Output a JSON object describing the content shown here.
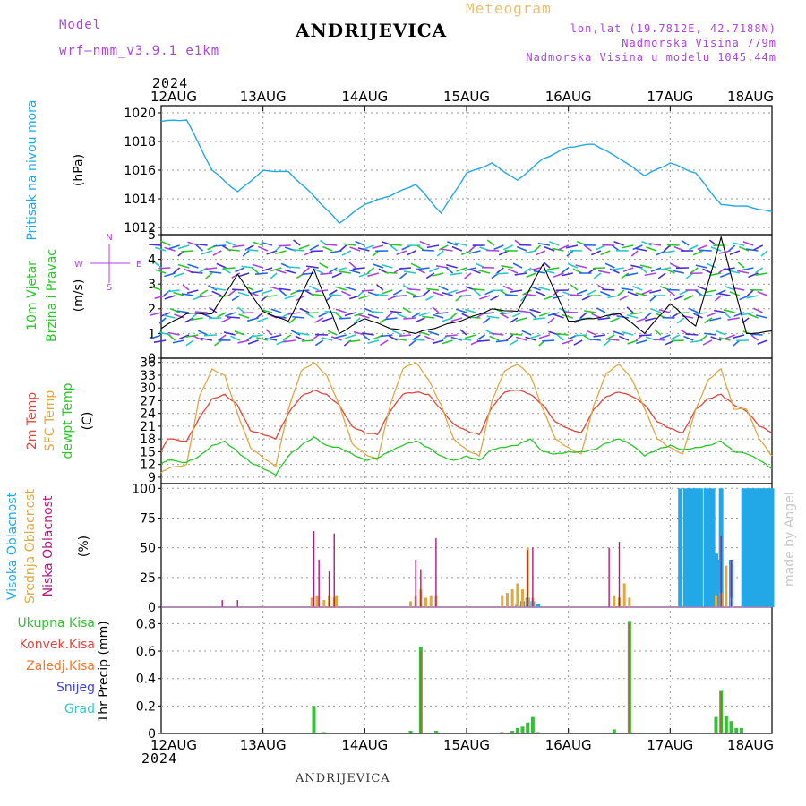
{
  "header": {
    "model_label": "Model",
    "model_name": "wrf—nmm_v3.9.1  e1km",
    "station": "ANDRIJEVICA",
    "meteogram_label": "Meteogram",
    "lonlat": "lon,lat (19.7812E, 42.7188N)",
    "elevation": "Nadmorska Visina 779m",
    "model_elevation": "Nadmorska Visina u modelu 1045.44m",
    "watermark": "made by Angel",
    "footer_station": "ANDRIJEVICA",
    "year_top": "2024",
    "year_bottom": "2024"
  },
  "colors": {
    "pressure": "#22a8e6",
    "temp2m": "#e2453c",
    "sfc_temp": "#e0a840",
    "dewpt": "#28c828",
    "high_cloud": "#22a8e6",
    "mid_cloud": "#e0a840",
    "low_cloud": "#b4197f",
    "total_precip": "#34c034",
    "convective": "#e2453c",
    "freezing": "#f07a30",
    "snow": "#4040e0",
    "grad": "#30c8c8",
    "model_header": "#aa44dd",
    "meteogram": "#e8c070"
  },
  "chart_data": [
    {
      "type": "line",
      "panel": "pressure",
      "ylabel": [
        "Pritisak na nivou mora",
        "(hPa)"
      ],
      "x_ticks": [
        "12AUG",
        "13AUG",
        "14AUG",
        "15AUG",
        "16AUG",
        "17AUG",
        "18AUG"
      ],
      "ylim": [
        1011.5,
        1020.5
      ],
      "yticks": [
        1012,
        1014,
        1016,
        1018,
        1020
      ],
      "grid": true,
      "x": [
        0,
        0.25,
        0.5,
        0.75,
        1,
        1.25,
        1.5,
        1.75,
        2,
        2.25,
        2.5,
        2.75,
        3,
        3.25,
        3.5,
        3.75,
        4,
        4.25,
        4.5,
        4.75,
        5,
        5.25,
        5.5,
        5.75,
        6
      ],
      "series": [
        {
          "name": "Pritisak na nivou mora",
          "values": [
            1019.4,
            1019.5,
            1016.0,
            1014.5,
            1016.0,
            1015.9,
            1014.2,
            1012.3,
            1013.6,
            1014.2,
            1015.0,
            1013.0,
            1015.8,
            1016.5,
            1015.3,
            1016.8,
            1017.6,
            1017.8,
            1016.8,
            1015.6,
            1016.5,
            1015.8,
            1013.6,
            1013.5,
            1013.1
          ]
        }
      ]
    },
    {
      "type": "line",
      "panel": "wind",
      "ylabel": [
        "10m Vjetar",
        "Brzina i Pravac",
        "(m/s)"
      ],
      "compass": [
        "N",
        "S",
        "W",
        "E"
      ],
      "ylim": [
        0,
        5
      ],
      "yticks": [
        0,
        1,
        2,
        3,
        4,
        5
      ],
      "grid": true,
      "x": [
        0,
        0.25,
        0.5,
        0.75,
        1,
        1.25,
        1.5,
        1.75,
        2,
        2.25,
        2.5,
        2.75,
        3,
        3.25,
        3.5,
        3.75,
        4,
        4.25,
        4.5,
        4.75,
        5,
        5.25,
        5.5,
        5.75,
        6
      ],
      "series": [
        {
          "name": "10m Vjetar",
          "values": [
            1.2,
            1.8,
            1.8,
            3.4,
            1.9,
            1.5,
            3.6,
            1.0,
            1.6,
            1.2,
            1.0,
            1.3,
            1.6,
            2.0,
            1.9,
            3.8,
            1.5,
            1.6,
            1.8,
            1.0,
            2.2,
            1.3,
            4.9,
            1.0,
            1.1
          ]
        }
      ]
    },
    {
      "type": "line",
      "panel": "temperature",
      "ylabel": [
        "2m Temp",
        "SFC Temp",
        "dewpt Temp",
        "(C)"
      ],
      "ylim": [
        7.5,
        37
      ],
      "yticks": [
        9,
        12,
        15,
        18,
        21,
        24,
        27,
        30,
        33,
        36
      ],
      "grid": true,
      "x": [
        0,
        0.0625,
        0.25,
        0.375,
        0.5,
        0.625,
        0.75,
        0.875,
        1,
        1.125,
        1.25,
        1.375,
        1.5,
        1.625,
        1.75,
        1.875,
        2,
        2.125,
        2.25,
        2.375,
        2.5,
        2.625,
        2.75,
        2.875,
        3,
        3.125,
        3.25,
        3.375,
        3.5,
        3.625,
        3.75,
        3.875,
        4,
        4.125,
        4.25,
        4.375,
        4.5,
        4.625,
        4.75,
        4.875,
        5,
        5.125,
        5.25,
        5.375,
        5.5,
        5.625,
        5.75,
        5.875,
        6
      ],
      "series": [
        {
          "name": "2m Temp",
          "values": [
            15.0,
            18.0,
            17.5,
            23.0,
            27.5,
            28.5,
            26.0,
            20.0,
            19.0,
            18.0,
            24.0,
            28.0,
            29.5,
            28.5,
            26.0,
            21.0,
            19.5,
            19.0,
            24.5,
            28.5,
            29.0,
            28.5,
            25.0,
            21.5,
            20.0,
            19.0,
            25.5,
            29.0,
            29.5,
            28.5,
            26.0,
            22.0,
            20.5,
            19.5,
            25.0,
            28.0,
            29.0,
            28.0,
            26.0,
            22.0,
            20.5,
            19.5,
            25.0,
            27.5,
            28.5,
            26.0,
            24.5,
            21.0,
            19.5
          ]
        },
        {
          "name": "SFC Temp",
          "values": [
            10.0,
            11.0,
            12.0,
            28.0,
            34.5,
            33.0,
            24.0,
            16.0,
            13.5,
            11.5,
            25.0,
            34.0,
            36.0,
            33.0,
            26.0,
            17.0,
            14.5,
            13.0,
            26.0,
            34.5,
            36.0,
            32.0,
            26.0,
            18.0,
            15.5,
            14.0,
            27.0,
            34.0,
            35.5,
            33.0,
            25.0,
            18.0,
            16.0,
            14.5,
            26.0,
            33.5,
            35.5,
            32.0,
            25.0,
            18.0,
            16.0,
            14.5,
            25.0,
            32.0,
            34.5,
            25.0,
            25.0,
            18.0,
            14.0
          ]
        },
        {
          "name": "dewpt Temp",
          "values": [
            12.0,
            13.0,
            12.5,
            14.0,
            16.5,
            17.5,
            15.0,
            12.5,
            11.0,
            9.5,
            14.0,
            16.5,
            18.5,
            16.5,
            16.0,
            14.5,
            13.0,
            13.5,
            15.0,
            16.5,
            17.5,
            16.0,
            14.0,
            13.0,
            14.0,
            13.0,
            15.5,
            16.0,
            16.5,
            18.0,
            15.0,
            14.5,
            15.0,
            15.0,
            15.5,
            17.0,
            18.0,
            16.5,
            14.0,
            15.5,
            16.5,
            15.5,
            16.0,
            16.5,
            17.5,
            15.0,
            14.5,
            13.0,
            11.0
          ]
        }
      ]
    },
    {
      "type": "bar",
      "panel": "cloud",
      "ylabel": [
        "Visoka Oblacnost",
        "Srednja Oblacnost",
        "Niska Oblacnost",
        "(%)"
      ],
      "ylim": [
        0,
        104
      ],
      "yticks": [
        0,
        25,
        50,
        75,
        100
      ],
      "grid": true,
      "series": [
        {
          "name": "Visoka Oblacnost",
          "x": [
            3.5,
            3.55,
            3.6,
            3.65,
            3.7,
            5.42,
            5.45,
            5.48,
            5.5,
            5.6,
            5.72,
            5.75,
            5.78,
            5.8,
            5.82,
            5.85,
            5.88,
            5.9,
            5.92,
            5.95,
            5.98,
            6.0,
            5.1,
            5.15,
            5.18,
            5.22,
            5.25,
            5.28,
            5.3,
            5.35,
            5.38
          ],
          "values": [
            2,
            5,
            8,
            5,
            3,
            100,
            45,
            40,
            100,
            40,
            100,
            100,
            100,
            100,
            100,
            100,
            100,
            100,
            100,
            100,
            100,
            100,
            100,
            100,
            100,
            100,
            100,
            100,
            100,
            100,
            100
          ]
        },
        {
          "name": "Srednja Oblacnost",
          "x": [
            1.48,
            1.53,
            1.6,
            1.65,
            1.7,
            1.72,
            2.45,
            2.5,
            2.55,
            2.6,
            2.65,
            2.7,
            3.35,
            3.4,
            3.45,
            3.5,
            3.55,
            3.6,
            3.65,
            4.45,
            4.5,
            4.55,
            4.6,
            5.45,
            5.5,
            5.55,
            5.6
          ],
          "values": [
            8,
            10,
            6,
            10,
            8,
            10,
            5,
            10,
            15,
            8,
            10,
            10,
            10,
            12,
            15,
            20,
            15,
            50,
            8,
            10,
            8,
            20,
            8,
            10,
            12,
            35,
            8
          ]
        },
        {
          "name": "Niska Oblacnost",
          "x": [
            0.6,
            0.75,
            1.5,
            1.55,
            1.65,
            1.7,
            2.5,
            2.55,
            2.7,
            3.6,
            3.65,
            4.4,
            4.5,
            5.5,
            5.6
          ],
          "values": [
            6,
            6,
            64,
            40,
            30,
            62,
            40,
            32,
            58,
            48,
            50,
            50,
            55,
            60,
            40
          ]
        }
      ]
    },
    {
      "type": "bar",
      "panel": "precip",
      "ylabel": [
        "1hr Precip (mm)"
      ],
      "legend": [
        "Ukupna Kisa",
        "Konvek.Kisa",
        "Zaledj.Kisa",
        "Snijeg",
        "Grad"
      ],
      "ylim": [
        0,
        0.92
      ],
      "yticks": [
        0,
        0.2,
        0.4,
        0.6,
        0.8
      ],
      "grid": true,
      "series": [
        {
          "name": "Ukupna Kisa",
          "x": [
            1.5,
            1.6,
            2.45,
            2.55,
            2.7,
            3.35,
            3.45,
            3.5,
            3.55,
            3.6,
            3.65,
            3.7,
            4.45,
            4.6,
            5.45,
            5.5,
            5.55,
            5.6,
            5.65,
            5.7
          ],
          "values": [
            0.2,
            0.01,
            0.02,
            0.63,
            0.02,
            0.01,
            0.02,
            0.04,
            0.05,
            0.08,
            0.12,
            0.01,
            0.03,
            0.82,
            0.12,
            0.31,
            0.13,
            0.09,
            0.04,
            0.04
          ]
        },
        {
          "name": "Konvek.Kisa",
          "x": [
            2.55,
            4.6,
            5.5
          ],
          "values": [
            0.6,
            0.8,
            0.3
          ]
        }
      ]
    }
  ]
}
